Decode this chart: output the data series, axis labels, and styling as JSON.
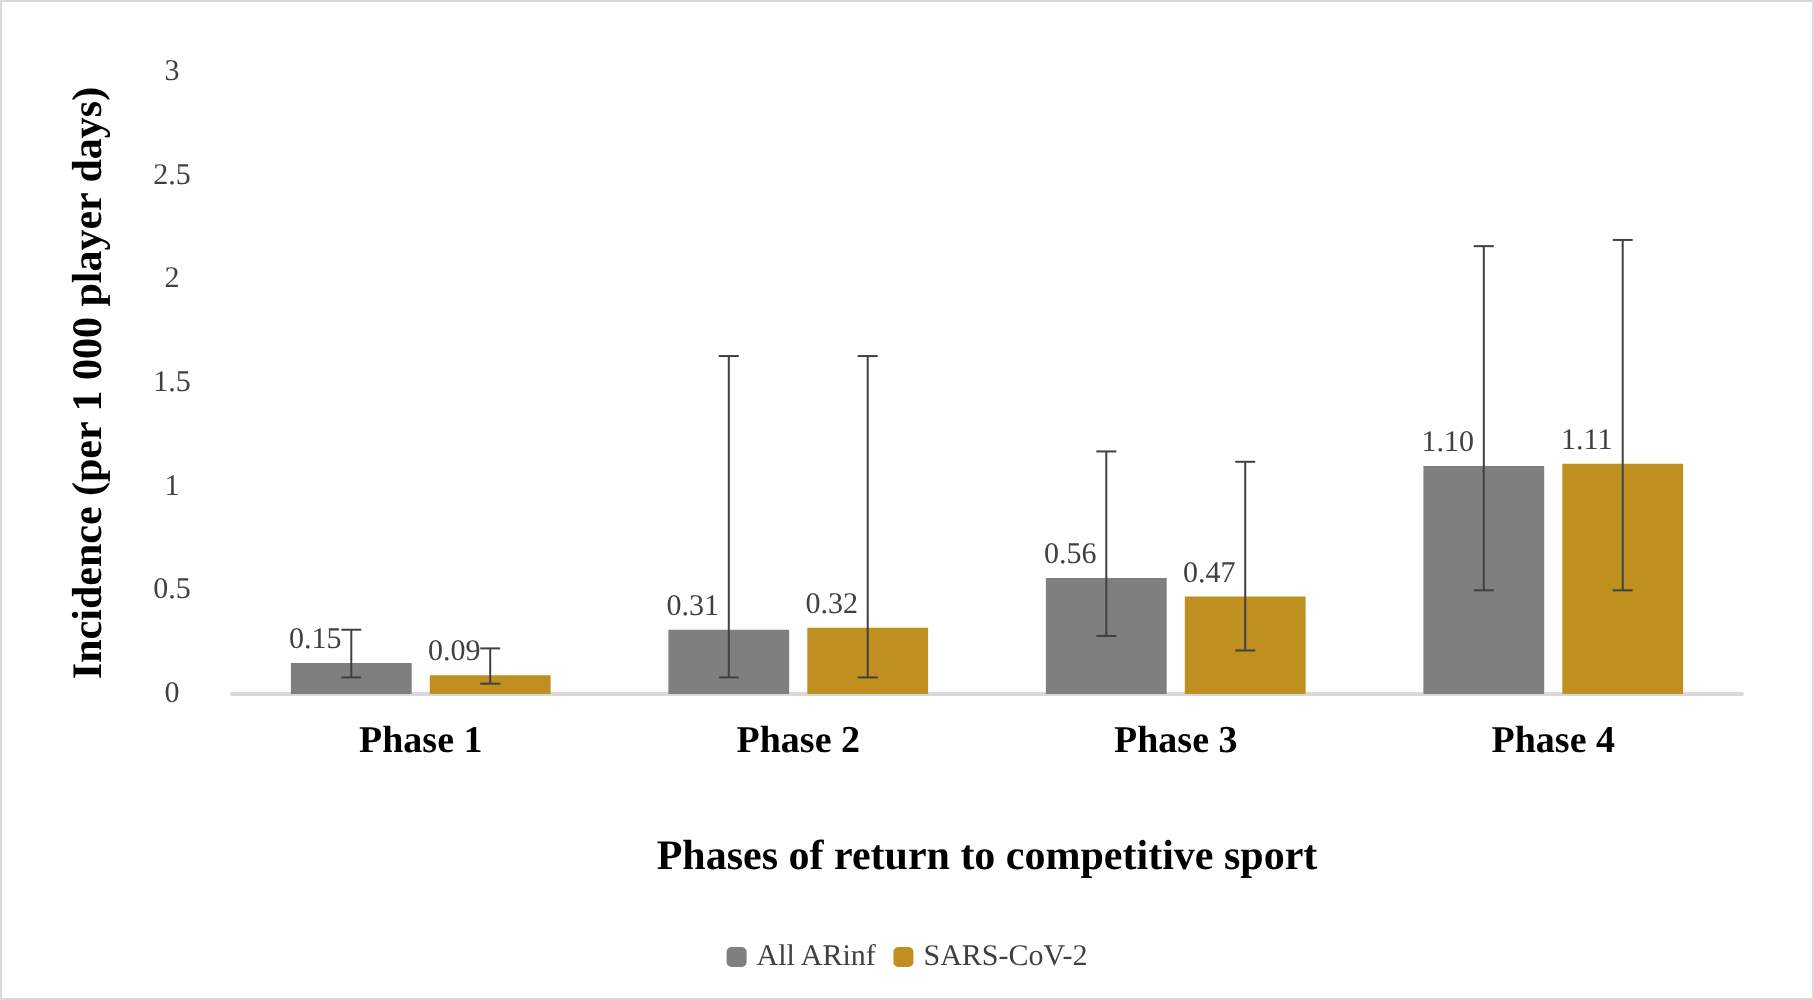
{
  "chart_data": {
    "type": "bar",
    "xlabel": "Phases of return to competitive sport",
    "ylabel": "Incidence (per 1 000 player days)",
    "categories": [
      "Phase 1",
      "Phase 2",
      "Phase 3",
      "Phase 4"
    ],
    "series": [
      {
        "name": "All ARinf",
        "color": "#7f7f7f",
        "values": [
          0.15,
          0.31,
          0.56,
          1.1
        ],
        "value_labels": [
          "0.15",
          "0.31",
          "0.56",
          "1.10"
        ],
        "errors": [
          [
            0.08,
            0.31
          ],
          [
            0.08,
            1.63
          ],
          [
            0.28,
            1.17
          ],
          [
            0.5,
            2.16
          ]
        ]
      },
      {
        "name": "SARS-CoV-2",
        "color": "#bf8f1f",
        "values": [
          0.09,
          0.32,
          0.47,
          1.11
        ],
        "value_labels": [
          "0.09",
          "0.32",
          "0.47",
          "1.11"
        ],
        "errors": [
          [
            0.05,
            0.22
          ],
          [
            0.08,
            1.63
          ],
          [
            0.21,
            1.12
          ],
          [
            0.5,
            2.19
          ]
        ]
      }
    ],
    "ylim": [
      0,
      3
    ],
    "yticks": [
      0,
      0.5,
      1,
      1.5,
      2,
      2.5,
      3
    ],
    "grid": false,
    "legend": "bottom"
  }
}
